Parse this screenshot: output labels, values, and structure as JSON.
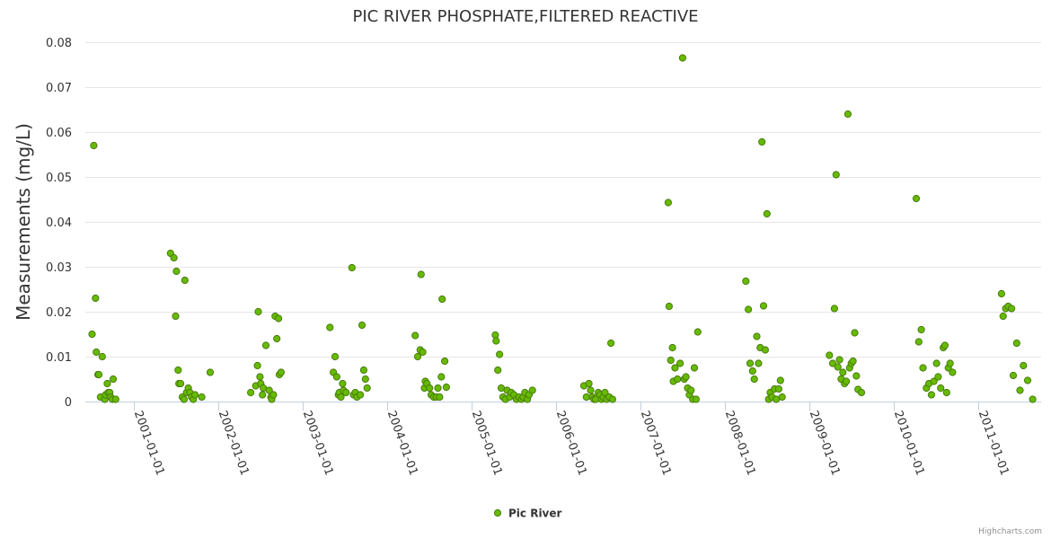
{
  "chart_data": {
    "type": "scatter",
    "title": "PIC RIVER PHOSPHATE,FILTERED REACTIVE",
    "xlabel": "",
    "ylabel": "Measurements (mg/L)",
    "ylim": [
      0,
      0.08
    ],
    "yticks": [
      "0",
      "0.01",
      "0.02",
      "0.03",
      "0.04",
      "0.05",
      "0.06",
      "0.07",
      "0.08"
    ],
    "xlim": [
      2000.42,
      2011.75
    ],
    "xticks": [
      {
        "label": "2001-01-01",
        "value": 2001.0
      },
      {
        "label": "2002-01-01",
        "value": 2002.0
      },
      {
        "label": "2003-01-01",
        "value": 2003.0
      },
      {
        "label": "2004-01-01",
        "value": 2004.0
      },
      {
        "label": "2005-01-01",
        "value": 2005.0
      },
      {
        "label": "2006-01-01",
        "value": 2006.0
      },
      {
        "label": "2007-01-01",
        "value": 2007.0
      },
      {
        "label": "2008-01-01",
        "value": 2008.0
      },
      {
        "label": "2009-01-01",
        "value": 2009.0
      },
      {
        "label": "2010-01-01",
        "value": 2010.0
      },
      {
        "label": "2011-01-01",
        "value": 2011.0
      }
    ],
    "legend_position": "bottom-center",
    "series": [
      {
        "name": "Pic River",
        "color": "#66bb00",
        "stroke": "#4a7a10",
        "points": [
          [
            2000.5,
            0.015
          ],
          [
            2000.52,
            0.057
          ],
          [
            2000.54,
            0.023
          ],
          [
            2000.55,
            0.011
          ],
          [
            2000.57,
            0.006
          ],
          [
            2000.58,
            0.006
          ],
          [
            2000.6,
            0.001
          ],
          [
            2000.62,
            0.01
          ],
          [
            2000.65,
            0.0005
          ],
          [
            2000.66,
            0.0015
          ],
          [
            2000.68,
            0.004
          ],
          [
            2000.69,
            0.002
          ],
          [
            2000.71,
            0.002
          ],
          [
            2000.72,
            0.001
          ],
          [
            2000.74,
            0.0005
          ],
          [
            2000.75,
            0.005
          ],
          [
            2000.78,
            0.0005
          ],
          [
            2001.43,
            0.033
          ],
          [
            2001.47,
            0.032
          ],
          [
            2001.49,
            0.019
          ],
          [
            2001.5,
            0.029
          ],
          [
            2001.52,
            0.007
          ],
          [
            2001.53,
            0.004
          ],
          [
            2001.55,
            0.004
          ],
          [
            2001.57,
            0.001
          ],
          [
            2001.59,
            0.0005
          ],
          [
            2001.6,
            0.027
          ],
          [
            2001.62,
            0.002
          ],
          [
            2001.64,
            0.003
          ],
          [
            2001.66,
            0.002
          ],
          [
            2001.68,
            0.001
          ],
          [
            2001.7,
            0.0005
          ],
          [
            2001.72,
            0.0015
          ],
          [
            2001.8,
            0.001
          ],
          [
            2001.9,
            0.0065
          ],
          [
            2002.38,
            0.002
          ],
          [
            2002.44,
            0.0035
          ],
          [
            2002.46,
            0.008
          ],
          [
            2002.47,
            0.02
          ],
          [
            2002.49,
            0.0055
          ],
          [
            2002.5,
            0.004
          ],
          [
            2002.52,
            0.0015
          ],
          [
            2002.53,
            0.003
          ],
          [
            2002.56,
            0.0125
          ],
          [
            2002.6,
            0.0025
          ],
          [
            2002.62,
            0.001
          ],
          [
            2002.63,
            0.0005
          ],
          [
            2002.65,
            0.0015
          ],
          [
            2002.67,
            0.019
          ],
          [
            2002.69,
            0.014
          ],
          [
            2002.71,
            0.0185
          ],
          [
            2002.72,
            0.006
          ],
          [
            2002.74,
            0.0065
          ],
          [
            2003.32,
            0.0165
          ],
          [
            2003.36,
            0.0065
          ],
          [
            2003.38,
            0.01
          ],
          [
            2003.4,
            0.0055
          ],
          [
            2003.42,
            0.0015
          ],
          [
            2003.43,
            0.002
          ],
          [
            2003.45,
            0.001
          ],
          [
            2003.47,
            0.004
          ],
          [
            2003.48,
            0.0025
          ],
          [
            2003.51,
            0.002
          ],
          [
            2003.58,
            0.0298
          ],
          [
            2003.6,
            0.0015
          ],
          [
            2003.62,
            0.002
          ],
          [
            2003.64,
            0.001
          ],
          [
            2003.68,
            0.0015
          ],
          [
            2003.7,
            0.017
          ],
          [
            2003.72,
            0.007
          ],
          [
            2003.74,
            0.005
          ],
          [
            2003.76,
            0.003
          ],
          [
            2004.33,
            0.0147
          ],
          [
            2004.36,
            0.01
          ],
          [
            2004.39,
            0.0115
          ],
          [
            2004.4,
            0.0283
          ],
          [
            2004.42,
            0.011
          ],
          [
            2004.44,
            0.003
          ],
          [
            2004.45,
            0.0045
          ],
          [
            2004.47,
            0.004
          ],
          [
            2004.5,
            0.003
          ],
          [
            2004.52,
            0.0015
          ],
          [
            2004.55,
            0.001
          ],
          [
            2004.58,
            0.001
          ],
          [
            2004.6,
            0.003
          ],
          [
            2004.62,
            0.001
          ],
          [
            2004.64,
            0.0055
          ],
          [
            2004.65,
            0.0228
          ],
          [
            2004.68,
            0.009
          ],
          [
            2004.7,
            0.0032
          ],
          [
            2005.28,
            0.0148
          ],
          [
            2005.29,
            0.0135
          ],
          [
            2005.31,
            0.007
          ],
          [
            2005.33,
            0.0105
          ],
          [
            2005.35,
            0.003
          ],
          [
            2005.37,
            0.001
          ],
          [
            2005.4,
            0.0005
          ],
          [
            2005.42,
            0.0025
          ],
          [
            2005.45,
            0.001
          ],
          [
            2005.47,
            0.002
          ],
          [
            2005.5,
            0.0015
          ],
          [
            2005.53,
            0.0005
          ],
          [
            2005.56,
            0.001
          ],
          [
            2005.59,
            0.0005
          ],
          [
            2005.61,
            0.001
          ],
          [
            2005.63,
            0.002
          ],
          [
            2005.66,
            0.0005
          ],
          [
            2005.68,
            0.0015
          ],
          [
            2005.72,
            0.0025
          ],
          [
            2006.33,
            0.0035
          ],
          [
            2006.36,
            0.001
          ],
          [
            2006.39,
            0.004
          ],
          [
            2006.41,
            0.0025
          ],
          [
            2006.43,
            0.001
          ],
          [
            2006.45,
            0.0005
          ],
          [
            2006.47,
            0.0005
          ],
          [
            2006.5,
            0.002
          ],
          [
            2006.52,
            0.0015
          ],
          [
            2006.54,
            0.0005
          ],
          [
            2006.56,
            0.001
          ],
          [
            2006.58,
            0.002
          ],
          [
            2006.6,
            0.0005
          ],
          [
            2006.63,
            0.001
          ],
          [
            2006.65,
            0.013
          ],
          [
            2006.67,
            0.0005
          ],
          [
            2007.33,
            0.0443
          ],
          [
            2007.34,
            0.0212
          ],
          [
            2007.36,
            0.0092
          ],
          [
            2007.38,
            0.012
          ],
          [
            2007.39,
            0.0045
          ],
          [
            2007.41,
            0.0075
          ],
          [
            2007.44,
            0.005
          ],
          [
            2007.47,
            0.0085
          ],
          [
            2007.5,
            0.0765
          ],
          [
            2007.52,
            0.005
          ],
          [
            2007.54,
            0.0055
          ],
          [
            2007.56,
            0.003
          ],
          [
            2007.58,
            0.0015
          ],
          [
            2007.6,
            0.0025
          ],
          [
            2007.62,
            0.0005
          ],
          [
            2007.64,
            0.0075
          ],
          [
            2007.66,
            0.0005
          ],
          [
            2007.68,
            0.0155
          ],
          [
            2008.25,
            0.0268
          ],
          [
            2008.28,
            0.0205
          ],
          [
            2008.3,
            0.0085
          ],
          [
            2008.33,
            0.0068
          ],
          [
            2008.35,
            0.005
          ],
          [
            2008.38,
            0.0145
          ],
          [
            2008.4,
            0.0085
          ],
          [
            2008.42,
            0.012
          ],
          [
            2008.44,
            0.0578
          ],
          [
            2008.46,
            0.0213
          ],
          [
            2008.48,
            0.0115
          ],
          [
            2008.5,
            0.0418
          ],
          [
            2008.52,
            0.0005
          ],
          [
            2008.54,
            0.002
          ],
          [
            2008.56,
            0.001
          ],
          [
            2008.59,
            0.0028
          ],
          [
            2008.61,
            0.0005
          ],
          [
            2008.64,
            0.0028
          ],
          [
            2008.66,
            0.0047
          ],
          [
            2008.68,
            0.001
          ],
          [
            2009.24,
            0.0103
          ],
          [
            2009.28,
            0.0085
          ],
          [
            2009.3,
            0.0207
          ],
          [
            2009.32,
            0.0505
          ],
          [
            2009.34,
            0.0077
          ],
          [
            2009.36,
            0.0093
          ],
          [
            2009.38,
            0.005
          ],
          [
            2009.4,
            0.0065
          ],
          [
            2009.42,
            0.004
          ],
          [
            2009.44,
            0.0045
          ],
          [
            2009.46,
            0.064
          ],
          [
            2009.48,
            0.0075
          ],
          [
            2009.5,
            0.0085
          ],
          [
            2009.52,
            0.009
          ],
          [
            2009.54,
            0.0153
          ],
          [
            2009.56,
            0.0057
          ],
          [
            2009.58,
            0.0027
          ],
          [
            2009.62,
            0.002
          ],
          [
            2010.27,
            0.0452
          ],
          [
            2010.3,
            0.0133
          ],
          [
            2010.33,
            0.016
          ],
          [
            2010.35,
            0.0075
          ],
          [
            2010.39,
            0.003
          ],
          [
            2010.42,
            0.004
          ],
          [
            2010.45,
            0.0015
          ],
          [
            2010.48,
            0.0045
          ],
          [
            2010.51,
            0.0085
          ],
          [
            2010.53,
            0.0055
          ],
          [
            2010.56,
            0.003
          ],
          [
            2010.59,
            0.012
          ],
          [
            2010.61,
            0.0125
          ],
          [
            2010.63,
            0.002
          ],
          [
            2010.65,
            0.0075
          ],
          [
            2010.67,
            0.0085
          ],
          [
            2010.7,
            0.0065
          ],
          [
            2011.28,
            0.024
          ],
          [
            2011.3,
            0.019
          ],
          [
            2011.33,
            0.0207
          ],
          [
            2011.36,
            0.0212
          ],
          [
            2011.4,
            0.0207
          ],
          [
            2011.42,
            0.0058
          ],
          [
            2011.46,
            0.013
          ],
          [
            2011.5,
            0.0025
          ],
          [
            2011.54,
            0.008
          ],
          [
            2011.59,
            0.0047
          ],
          [
            2011.65,
            0.0005
          ]
        ]
      }
    ]
  },
  "credits": "Highcharts.com"
}
